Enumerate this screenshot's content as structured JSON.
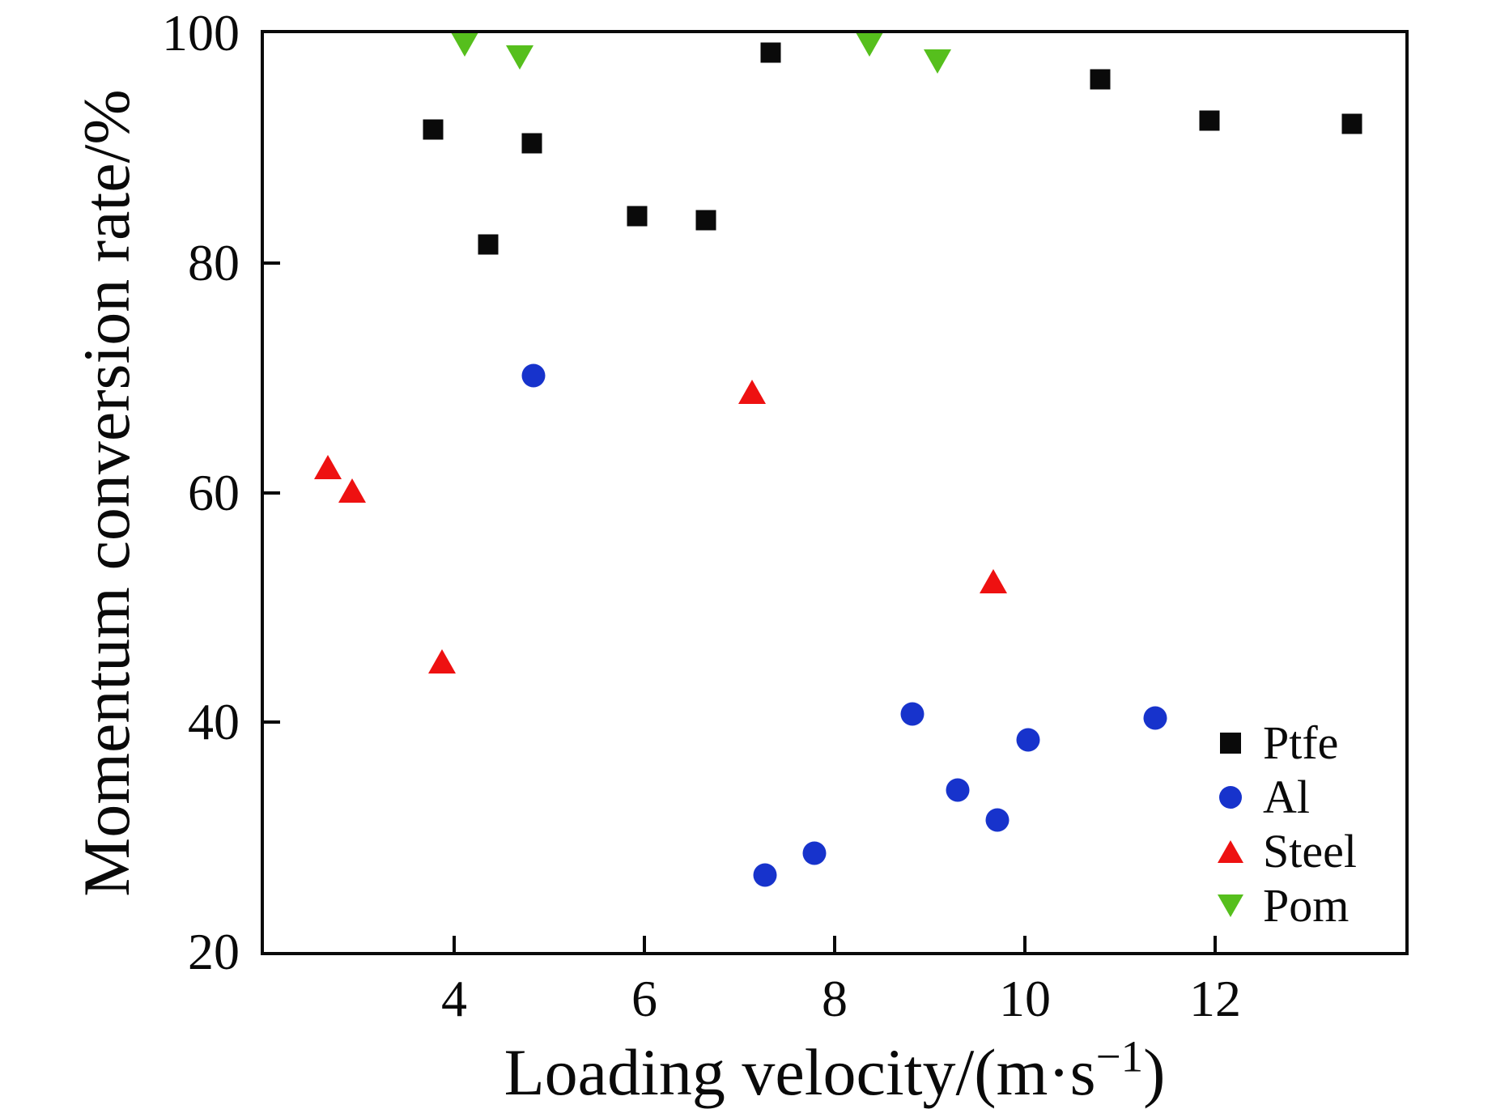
{
  "axes": {
    "x": {
      "label_prefix": "Loading velocity/(m·s",
      "label_sup": "−1",
      "label_suffix": ")",
      "ticks": [
        4,
        6,
        8,
        10,
        12
      ],
      "min": 2,
      "max": 14
    },
    "y": {
      "label": "Momentum conversion rate/%",
      "ticks": [
        20,
        40,
        60,
        80,
        100
      ],
      "min": 20,
      "max": 100
    }
  },
  "legend": {
    "items": [
      {
        "label": "Ptfe",
        "marker": "square",
        "color": "#0a0a0a"
      },
      {
        "label": "Al",
        "marker": "circle",
        "color": "#1733cc"
      },
      {
        "label": "Steel",
        "marker": "triangle-up",
        "color": "#ee1111"
      },
      {
        "label": "Pom",
        "marker": "triangle-down",
        "color": "#56bf1d"
      }
    ]
  },
  "chart_data": {
    "type": "scatter",
    "title": "",
    "xlabel": "Loading velocity/(m·s⁻¹)",
    "ylabel": "Momentum conversion rate/%",
    "xlim": [
      2,
      14
    ],
    "ylim": [
      20,
      100
    ],
    "x_ticks": [
      4,
      6,
      8,
      10,
      12
    ],
    "y_ticks": [
      20,
      40,
      60,
      80,
      100
    ],
    "grid": false,
    "legend_position": "lower right",
    "series": [
      {
        "name": "Ptfe",
        "marker": "square",
        "color": "#0a0a0a",
        "points": [
          [
            3.78,
            91.6
          ],
          [
            4.36,
            81.6
          ],
          [
            4.82,
            90.4
          ],
          [
            5.92,
            84.1
          ],
          [
            6.65,
            83.7
          ],
          [
            7.33,
            98.3
          ],
          [
            10.79,
            96.0
          ],
          [
            11.94,
            92.4
          ],
          [
            13.44,
            92.1
          ]
        ]
      },
      {
        "name": "Al",
        "marker": "circle",
        "color": "#1733cc",
        "points": [
          [
            4.83,
            70.2
          ],
          [
            7.27,
            26.7
          ],
          [
            7.79,
            28.6
          ],
          [
            8.82,
            40.7
          ],
          [
            9.29,
            34.1
          ],
          [
            9.71,
            31.5
          ],
          [
            10.03,
            38.5
          ],
          [
            11.37,
            40.4
          ]
        ]
      },
      {
        "name": "Steel",
        "marker": "triangle-up",
        "color": "#ee1111",
        "points": [
          [
            2.67,
            62.2
          ],
          [
            2.93,
            60.2
          ],
          [
            3.87,
            45.3
          ],
          [
            7.13,
            68.8
          ],
          [
            9.67,
            52.3
          ]
        ]
      },
      {
        "name": "Pom",
        "marker": "triangle-down",
        "color": "#56bf1d",
        "points": [
          [
            4.11,
            99.0
          ],
          [
            4.69,
            97.9
          ],
          [
            8.37,
            99.0
          ],
          [
            9.08,
            97.5
          ]
        ]
      }
    ]
  }
}
